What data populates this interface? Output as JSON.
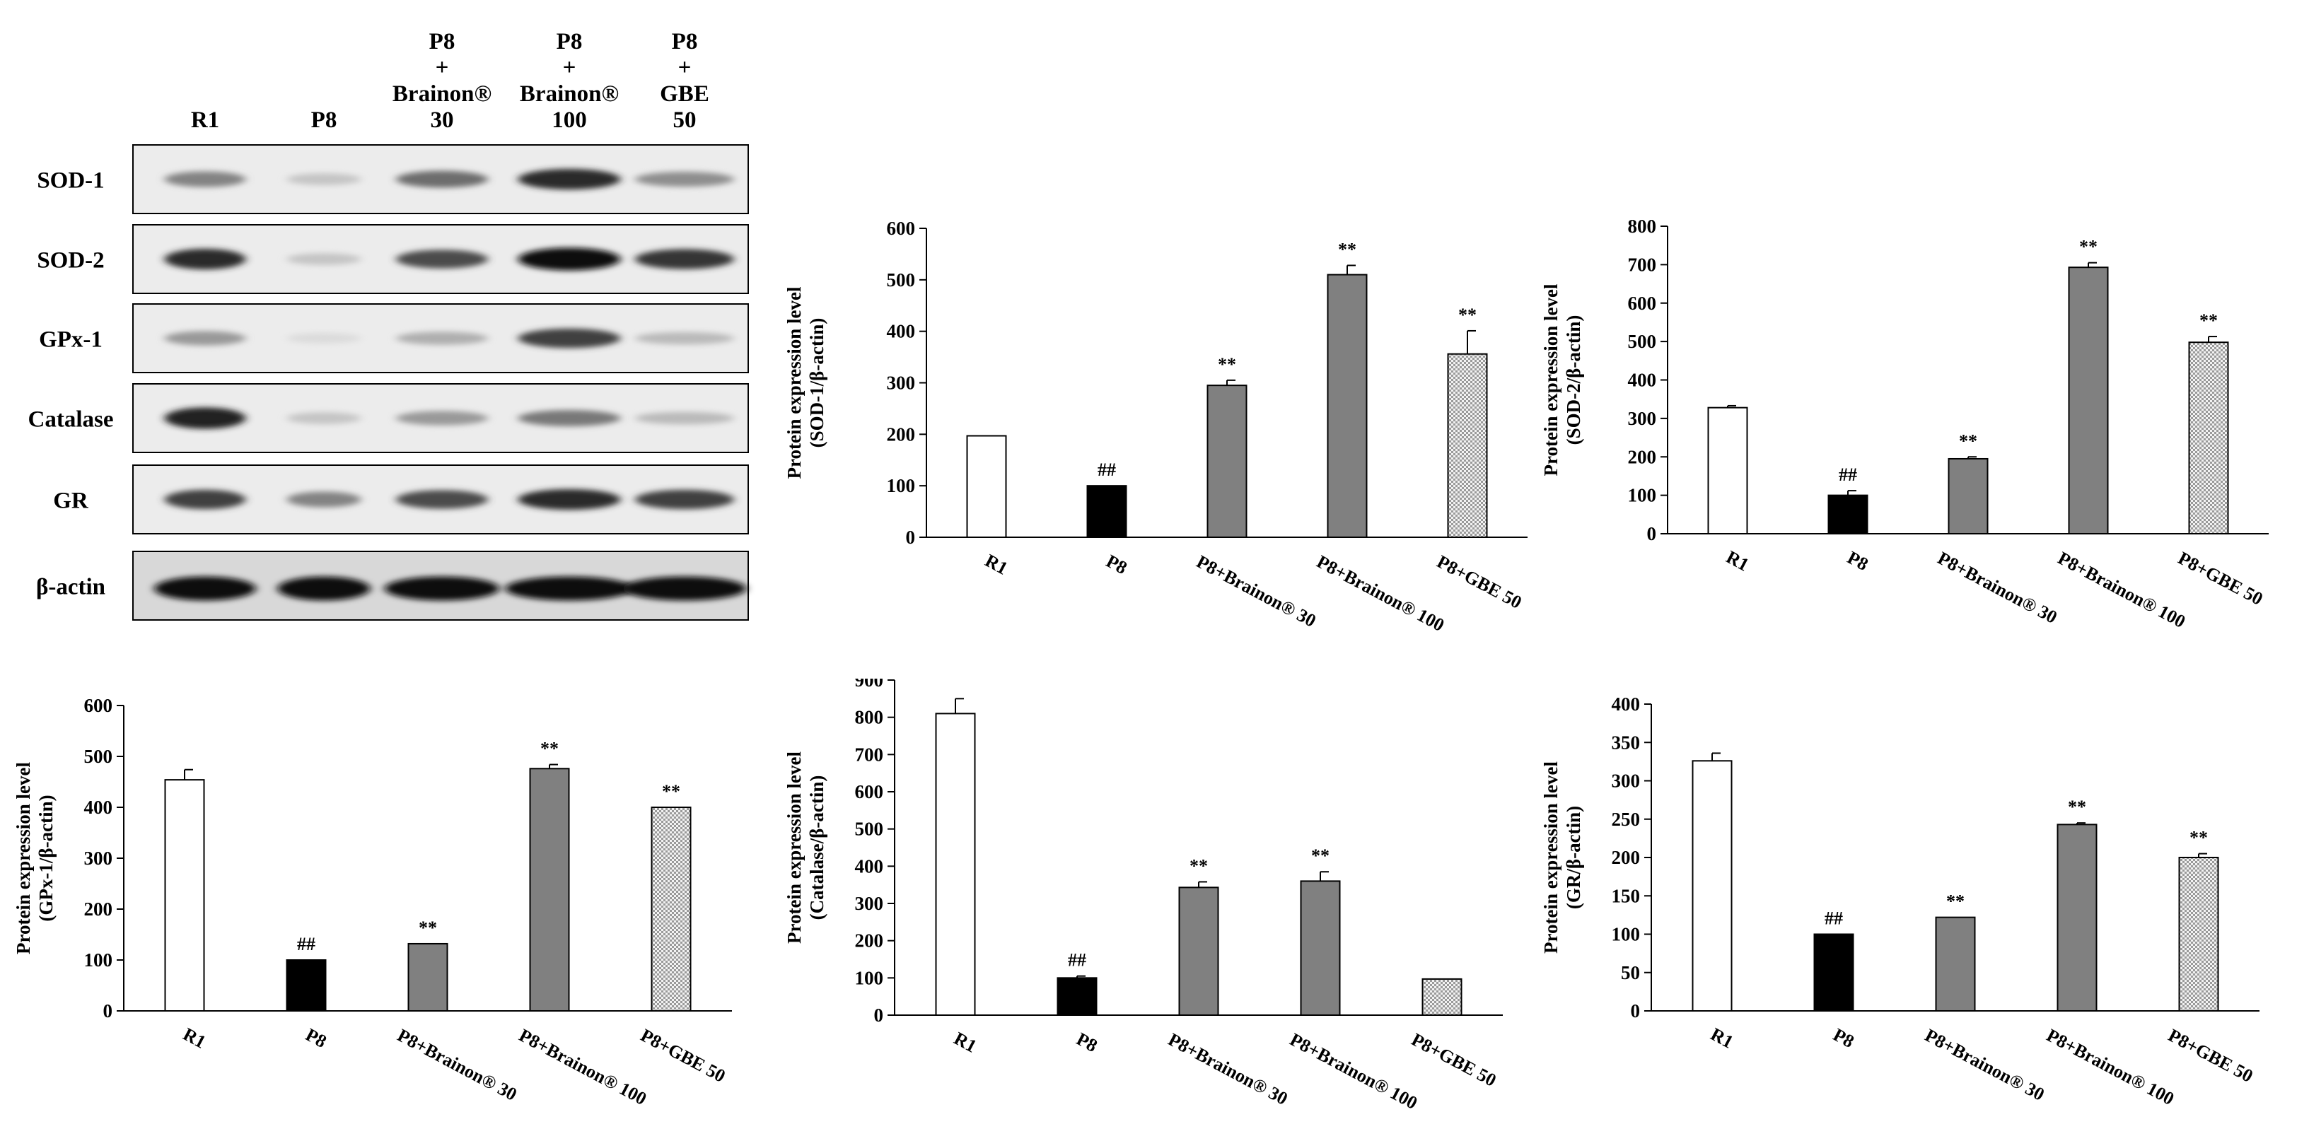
{
  "blot": {
    "lane_headers": [
      [
        "R1"
      ],
      [
        "P8"
      ],
      [
        "P8",
        "+",
        "Brainon®",
        "30"
      ],
      [
        "P8",
        "+",
        "Brainon®",
        "100"
      ],
      [
        "P8",
        "+",
        "GBE",
        "50"
      ]
    ],
    "rows": [
      {
        "label": "SOD-1",
        "intensity": [
          0.45,
          0.15,
          0.55,
          0.85,
          0.4
        ]
      },
      {
        "label": "SOD-2",
        "intensity": [
          0.85,
          0.15,
          0.7,
          1.0,
          0.8
        ]
      },
      {
        "label": "GPx-1",
        "intensity": [
          0.35,
          0.05,
          0.25,
          0.75,
          0.2
        ]
      },
      {
        "label": "Catalase",
        "intensity": [
          0.9,
          0.15,
          0.35,
          0.5,
          0.2
        ]
      },
      {
        "label": "GR",
        "intensity": [
          0.75,
          0.45,
          0.7,
          0.85,
          0.75
        ]
      },
      {
        "label": "β-actin",
        "intensity": [
          1.0,
          1.0,
          1.0,
          1.0,
          1.0
        ]
      }
    ]
  },
  "chart_data": [
    {
      "type": "bar",
      "categories": [
        "R1",
        "P8",
        "P8+Brainon® 30",
        "P8+Brainon® 100",
        "P8+GBE 50"
      ],
      "values": [
        197,
        100,
        295,
        510,
        356
      ],
      "errors": [
        0,
        0,
        10,
        18,
        45
      ],
      "annotations": [
        "",
        "##",
        "**",
        "**",
        "**"
      ],
      "ylabel": [
        "Protein expression level",
        "(SOD-1/β-actin)"
      ],
      "ylim": [
        0,
        600
      ],
      "yticks": [
        0,
        100,
        200,
        300,
        400,
        500,
        600
      ]
    },
    {
      "type": "bar",
      "categories": [
        "R1",
        "P8",
        "P8+Brainon® 30",
        "P8+Brainon® 100",
        "P8+GBE 50"
      ],
      "values": [
        328,
        100,
        195,
        693,
        498
      ],
      "errors": [
        5,
        12,
        5,
        12,
        15
      ],
      "annotations": [
        "",
        "##",
        "**",
        "**",
        "**"
      ],
      "ylabel": [
        "Protein expression level",
        "(SOD-2/β-actin)"
      ],
      "ylim": [
        0,
        800
      ],
      "yticks": [
        0,
        100,
        200,
        300,
        400,
        500,
        600,
        700,
        800
      ]
    },
    {
      "type": "bar",
      "categories": [
        "R1",
        "P8",
        "P8+Brainon® 30",
        "P8+Brainon® 100",
        "P8+GBE 50"
      ],
      "values": [
        454,
        100,
        132,
        476,
        400
      ],
      "errors": [
        20,
        0,
        0,
        8,
        0
      ],
      "annotations": [
        "",
        "##",
        "**",
        "**",
        "**"
      ],
      "ylabel": [
        "Protein expression level",
        "(GPx-1/β-actin)"
      ],
      "ylim": [
        0,
        600
      ],
      "yticks": [
        0,
        100,
        200,
        300,
        400,
        500,
        600
      ]
    },
    {
      "type": "bar",
      "categories": [
        "R1",
        "P8",
        "P8+Brainon® 30",
        "P8+Brainon® 100",
        "P8+GBE 50"
      ],
      "values": [
        810,
        100,
        343,
        360,
        97
      ],
      "errors": [
        40,
        5,
        15,
        25,
        0
      ],
      "annotations": [
        "",
        "##",
        "**",
        "**",
        ""
      ],
      "ylabel": [
        "Protein expression level",
        "(Catalase/β-actin)"
      ],
      "ylim": [
        0,
        900
      ],
      "yticks": [
        0,
        100,
        200,
        300,
        400,
        500,
        600,
        700,
        800,
        900
      ]
    },
    {
      "type": "bar",
      "categories": [
        "R1",
        "P8",
        "P8+Brainon® 30",
        "P8+Brainon® 100",
        "P8+GBE 50"
      ],
      "values": [
        326,
        100,
        122,
        243,
        200
      ],
      "errors": [
        10,
        0,
        0,
        2,
        5
      ],
      "annotations": [
        "",
        "##",
        "**",
        "**",
        "**"
      ],
      "ylabel": [
        "Protein expression level",
        "(GR/β-actin)"
      ],
      "ylim": [
        0,
        400
      ],
      "yticks": [
        0,
        50,
        100,
        150,
        200,
        250,
        300,
        350,
        400
      ]
    }
  ],
  "bar_styles": {
    "fills": [
      "white",
      "black",
      "gray",
      "gray",
      "checker"
    ],
    "colors": {
      "white": "#ffffff",
      "black": "#000000",
      "gray": "#808080",
      "outline": "#000000"
    }
  }
}
